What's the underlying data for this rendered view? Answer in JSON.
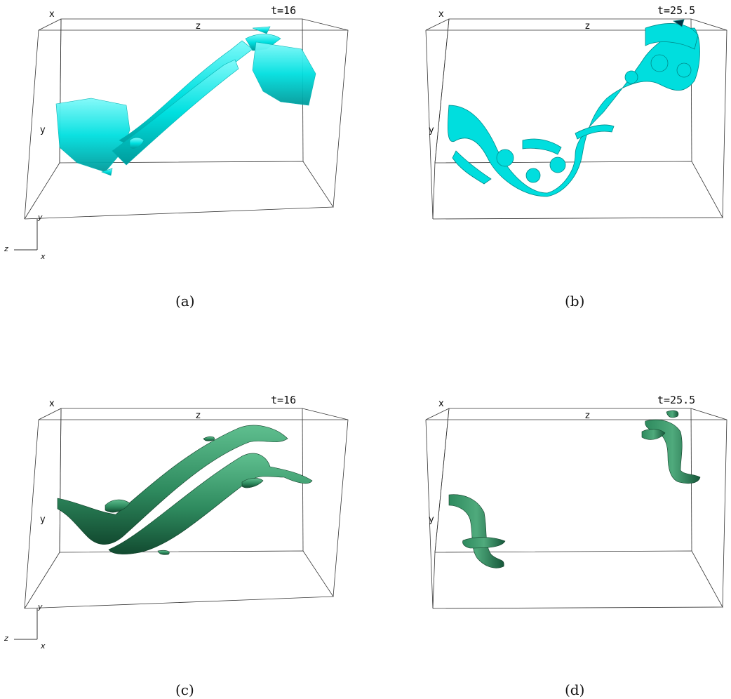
{
  "panels": [
    {
      "id": "a",
      "caption": "(a)",
      "time": "t=16",
      "axis_x": "x",
      "axis_y": "y",
      "axis_z": "z",
      "color": "#00e5e5",
      "style": "streaky"
    },
    {
      "id": "b",
      "caption": "(b)",
      "time": "t=25.5",
      "axis_x": "x",
      "axis_y": "y",
      "axis_z": "z",
      "color": "#00e0e0",
      "style": "turbulent"
    },
    {
      "id": "c",
      "caption": "(c)",
      "time": "t=16",
      "axis_x": "x",
      "axis_y": "y",
      "axis_z": "z",
      "color": "#2e8a5e",
      "style": "smooth"
    },
    {
      "id": "d",
      "caption": "(d)",
      "time": "t=25.5",
      "axis_x": "x",
      "axis_y": "y",
      "axis_z": "z",
      "color": "#2e8a5e",
      "style": "smooth"
    }
  ],
  "triads": [
    {
      "y": "y",
      "z": "z",
      "x": "x"
    },
    {
      "y": "y",
      "z": "z",
      "x": "x"
    }
  ]
}
